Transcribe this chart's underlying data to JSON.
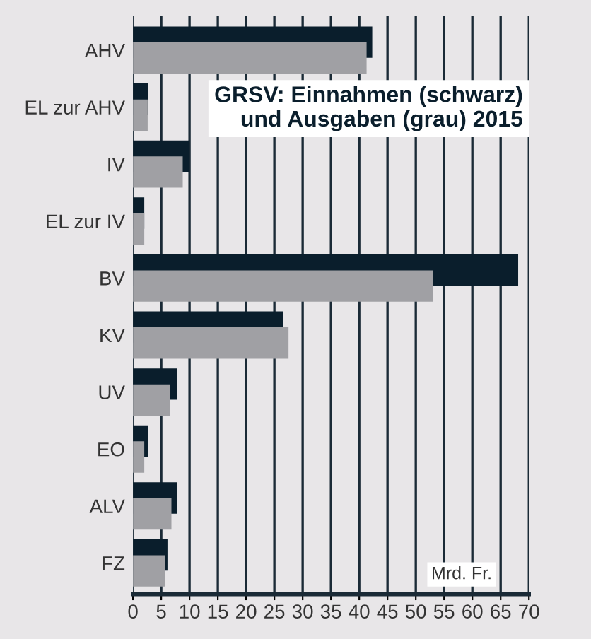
{
  "chart_data": {
    "type": "bar",
    "orientation": "horizontal",
    "title": "GRSV: Einnahmen (schwarz)\nund Ausgaben (grau) 2015",
    "categories": [
      "AHV",
      "EL zur AHV",
      "IV",
      "EL zur IV",
      "BV",
      "KV",
      "UV",
      "EO",
      "ALV",
      "FZ"
    ],
    "series": [
      {
        "color": "#0a1e2c",
        "values": [
          42.3,
          2.7,
          10.0,
          2.0,
          68.1,
          26.6,
          7.8,
          2.7,
          7.8,
          6.1
        ]
      },
      {
        "color": "#a0a0a4",
        "values": [
          41.3,
          2.6,
          8.8,
          2.0,
          53.1,
          27.5,
          6.5,
          2.0,
          6.8,
          5.7
        ]
      }
    ],
    "xlim": [
      0,
      70
    ],
    "xticks": [
      0,
      5,
      10,
      15,
      20,
      25,
      30,
      35,
      40,
      45,
      50,
      55,
      60,
      65,
      70
    ],
    "grid": "x",
    "annotations": [
      "Mrd. Fr."
    ]
  }
}
